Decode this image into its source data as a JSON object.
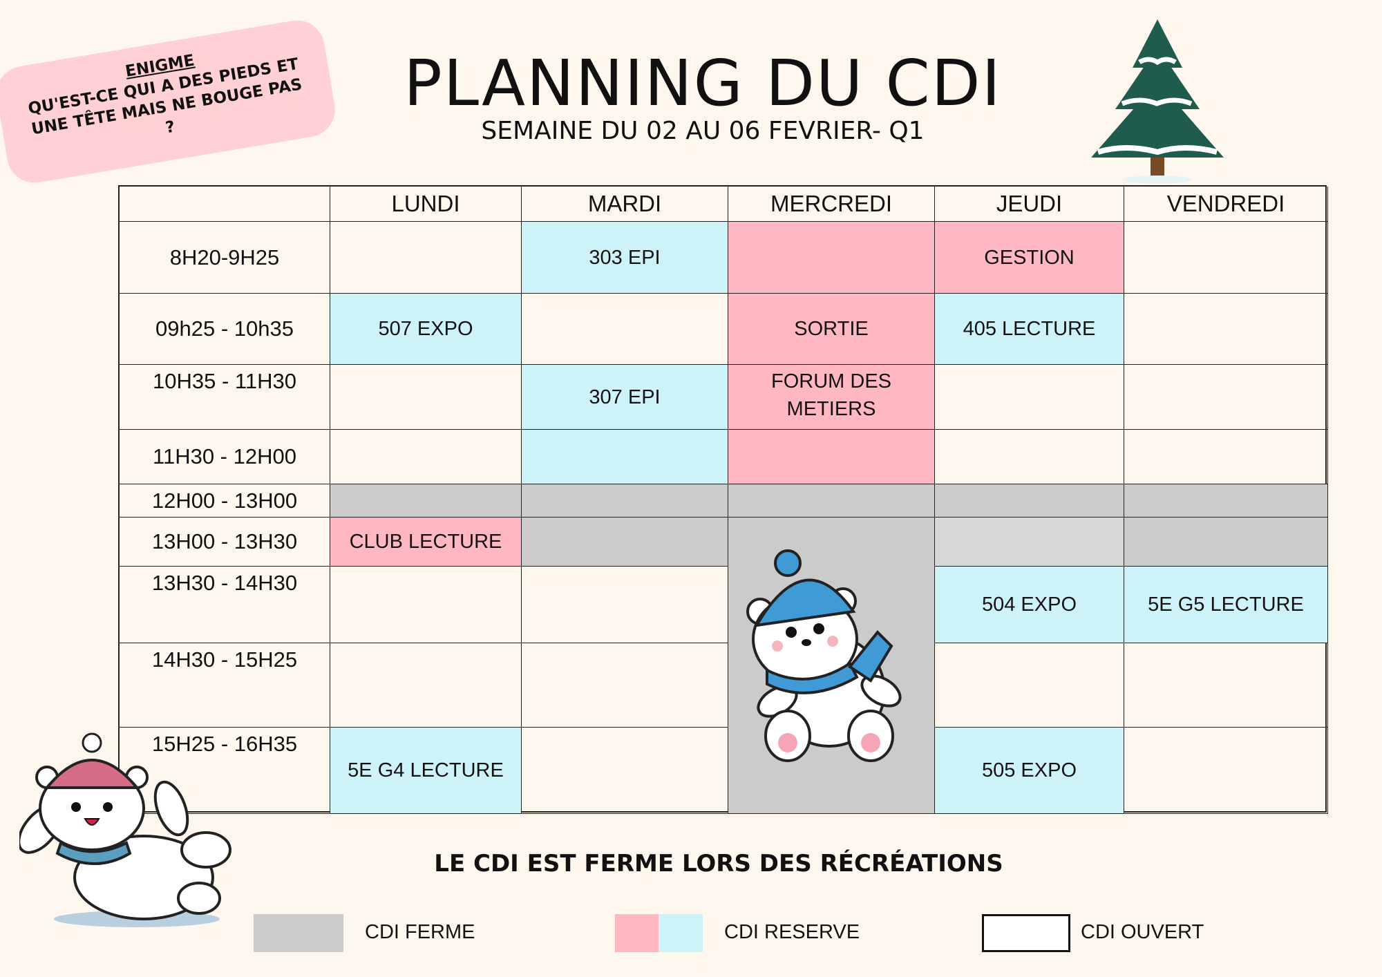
{
  "header": {
    "title": "PLANNING DU CDI",
    "subtitle": "SEMAINE DU 02 AU 06 FEVRIER- Q1"
  },
  "enigma": {
    "title": "ENIGME",
    "line1": "QU'EST-CE QUI A DES PIEDS ET",
    "line2": "UNE TÊTE MAIS NE BOUGE PAS",
    "line3": "?"
  },
  "colors": {
    "background": "#fef7ee",
    "reserved_blue": "#cdf3f9",
    "reserved_pink": "#ffb7c2",
    "closed_gray": "#cbcbcb",
    "enigma_pink": "#ffd0d4"
  },
  "table": {
    "days": [
      "LUNDI",
      "MARDI",
      "MERCREDI",
      "JEUDI",
      "VENDREDI"
    ],
    "rows": [
      {
        "time": "8H20-9H25",
        "cells": [
          {
            "text": "",
            "color": ""
          },
          {
            "text": "303 EPI",
            "color": "blue"
          },
          {
            "text": "",
            "color": "pink"
          },
          {
            "text": "GESTION",
            "color": "pink"
          },
          {
            "text": "",
            "color": ""
          }
        ]
      },
      {
        "time": "09h25 - 10h35",
        "cells": [
          {
            "text": "507 EXPO",
            "color": "blue"
          },
          {
            "text": "",
            "color": ""
          },
          {
            "text": "SORTIE",
            "color": "pink"
          },
          {
            "text": "405 LECTURE",
            "color": "blue"
          },
          {
            "text": "",
            "color": ""
          }
        ]
      },
      {
        "time": "10H35 - 11H30",
        "cells": [
          {
            "text": "",
            "color": ""
          },
          {
            "text": "307 EPI",
            "color": "blue"
          },
          {
            "text": "FORUM DES METIERS",
            "color": "pink"
          },
          {
            "text": "",
            "color": ""
          },
          {
            "text": "",
            "color": ""
          }
        ]
      },
      {
        "time": "11H30 - 12H00",
        "cells": [
          {
            "text": "",
            "color": ""
          },
          {
            "text": "",
            "color": "blue"
          },
          {
            "text": "",
            "color": "pink"
          },
          {
            "text": "",
            "color": ""
          },
          {
            "text": "",
            "color": ""
          }
        ]
      },
      {
        "time": "12H00 - 13H00",
        "cells": [
          {
            "text": "",
            "color": "gray"
          },
          {
            "text": "",
            "color": "gray"
          },
          {
            "text": "",
            "color": "gray"
          },
          {
            "text": "",
            "color": "gray"
          },
          {
            "text": "",
            "color": "gray"
          }
        ]
      },
      {
        "time": "13H00 - 13H30",
        "cells": [
          {
            "text": "CLUB LECTURE",
            "color": "pink"
          },
          {
            "text": "",
            "color": "gray"
          },
          {
            "text": "",
            "color": "gray",
            "rowspan": 4
          },
          {
            "text": "",
            "color": "lgray"
          },
          {
            "text": "",
            "color": "gray"
          }
        ]
      },
      {
        "time": "13H30 - 14H30",
        "cells": [
          {
            "text": "",
            "color": ""
          },
          {
            "text": "",
            "color": ""
          },
          null,
          {
            "text": "504 EXPO",
            "color": "blue"
          },
          {
            "text": "5E G5 LECTURE",
            "color": "blue"
          }
        ]
      },
      {
        "time": "14H30 - 15H25",
        "cells": [
          {
            "text": "",
            "color": ""
          },
          {
            "text": "",
            "color": ""
          },
          null,
          {
            "text": "",
            "color": ""
          },
          {
            "text": "",
            "color": ""
          }
        ]
      },
      {
        "time": "15H25 - 16H35",
        "cells": [
          {
            "text": "5E G4 LECTURE",
            "color": "blue"
          },
          {
            "text": "",
            "color": ""
          },
          null,
          {
            "text": "505 EXPO",
            "color": "blue"
          },
          {
            "text": "",
            "color": ""
          }
        ]
      }
    ]
  },
  "note": "LE CDI EST FERME LORS DES RÉCRÉATIONS",
  "legend": {
    "closed": "CDI FERME",
    "reserved": "CDI RESERVE",
    "open": "CDI OUVERT"
  },
  "icons": {
    "tree": "snowy-pine-tree",
    "bear1": "polar-bear-blue-hat",
    "bear2": "polar-bear-pink-hat"
  }
}
